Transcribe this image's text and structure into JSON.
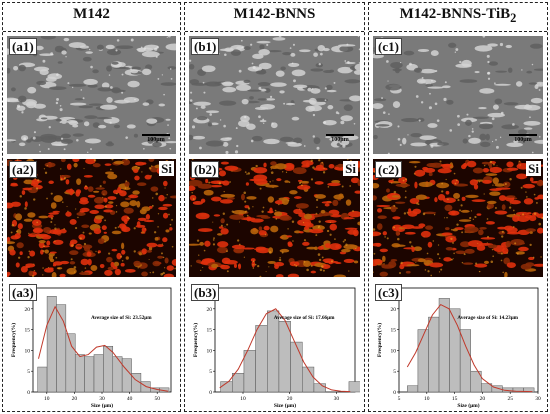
{
  "columns": [
    {
      "title": "M142",
      "title_sub": "",
      "sem_label": "(a1)",
      "map_label": "(a2)",
      "hist_label": "(a3)",
      "element": "Si",
      "scale": "100μm",
      "annotation": "Average size of Si: 23.52μm"
    },
    {
      "title": "M142-BNNS",
      "title_sub": "",
      "sem_label": "(b1)",
      "map_label": "(b2)",
      "hist_label": "(b3)",
      "element": "Si",
      "scale": "100μm",
      "annotation": "Average size of Si: 17.66μm"
    },
    {
      "title": "M142-BNNS-TiB",
      "title_sub": "2",
      "sem_label": "(c1)",
      "map_label": "(c2)",
      "hist_label": "(c3)",
      "element": "Si",
      "scale": "100μm",
      "annotation": "Average size of Si: 14.23μm"
    }
  ],
  "chart_data": [
    {
      "type": "bar",
      "xlabel": "Size (μm)",
      "ylabel": "Frequency(%)",
      "xlim": [
        5,
        55
      ],
      "ylim": [
        0,
        25
      ],
      "xticks": [
        10,
        20,
        30,
        40,
        50
      ],
      "yticks": [
        0,
        5,
        10,
        15,
        20,
        25
      ],
      "bin_width": 3.4,
      "bins": [
        6.7,
        10.1,
        13.5,
        16.9,
        20.3,
        23.7,
        27.1,
        30.5,
        33.9,
        37.3,
        40.7,
        44.1,
        47.5,
        50.9
      ],
      "values": [
        6,
        23,
        21,
        14,
        9,
        8.5,
        9,
        11,
        8.5,
        8,
        4.5,
        2.5,
        1,
        1
      ],
      "fit": [
        [
          7,
          8
        ],
        [
          10,
          16
        ],
        [
          13,
          20.5
        ],
        [
          16,
          17
        ],
        [
          19,
          11
        ],
        [
          22,
          8.5
        ],
        [
          25,
          9
        ],
        [
          28,
          10.8
        ],
        [
          31,
          11.2
        ],
        [
          34,
          9.5
        ],
        [
          38,
          6
        ],
        [
          42,
          3
        ],
        [
          46,
          1.3
        ],
        [
          50,
          0.6
        ],
        [
          54,
          0.2
        ]
      ],
      "fit_color": "#c0392b",
      "bar_color": "#bdbdbd"
    },
    {
      "type": "bar",
      "xlabel": "Size (μm)",
      "ylabel": "Frequency(%)",
      "xlim": [
        4,
        34
      ],
      "ylim": [
        0,
        25
      ],
      "xticks": [
        10,
        20,
        30
      ],
      "yticks": [
        0,
        5,
        10,
        15,
        20,
        25
      ],
      "bin_width": 2.5,
      "bins": [
        5.2,
        7.7,
        10.2,
        12.7,
        15.2,
        17.7,
        20.2,
        22.7,
        25.2,
        27.7,
        30.2,
        32.7
      ],
      "values": [
        2.5,
        4.5,
        10,
        16,
        19.5,
        17,
        12,
        6,
        2,
        0,
        0,
        2.5
      ],
      "fit": [
        [
          5,
          1
        ],
        [
          7,
          2.6
        ],
        [
          9,
          5.5
        ],
        [
          11,
          10
        ],
        [
          13,
          15
        ],
        [
          15,
          18.8
        ],
        [
          17,
          20
        ],
        [
          19,
          17.2
        ],
        [
          21,
          12.2
        ],
        [
          23,
          7.2
        ],
        [
          25,
          3.6
        ],
        [
          27,
          1.5
        ],
        [
          29,
          0.5
        ],
        [
          31,
          0.2
        ],
        [
          33,
          0.1
        ]
      ],
      "fit_color": "#c0392b",
      "bar_color": "#bdbdbd"
    },
    {
      "type": "bar",
      "xlabel": "Size (μm)",
      "ylabel": "Frequency(%)",
      "xlim": [
        5,
        30
      ],
      "ylim": [
        0,
        25
      ],
      "xticks": [
        5,
        10,
        15,
        20,
        25,
        30
      ],
      "yticks": [
        0,
        5,
        10,
        15,
        20,
        25
      ],
      "bin_width": 1.9,
      "bins": [
        6.5,
        8.4,
        10.3,
        12.2,
        14.1,
        16.0,
        17.9,
        19.8,
        21.7,
        23.6,
        25.5,
        27.4
      ],
      "values": [
        1.5,
        15,
        18,
        22.5,
        20,
        15,
        5,
        2,
        1.5,
        1,
        1,
        1
      ],
      "fit": [
        [
          6.5,
          6
        ],
        [
          8,
          9.5
        ],
        [
          9.5,
          14
        ],
        [
          11,
          18.5
        ],
        [
          12.5,
          21
        ],
        [
          14,
          20
        ],
        [
          15.5,
          16
        ],
        [
          17,
          11
        ],
        [
          18.5,
          6.5
        ],
        [
          20,
          3.2
        ],
        [
          22,
          1.2
        ],
        [
          24,
          0.4
        ],
        [
          26,
          0.2
        ],
        [
          29,
          0.1
        ]
      ],
      "fit_color": "#c0392b",
      "bar_color": "#bdbdbd"
    }
  ]
}
